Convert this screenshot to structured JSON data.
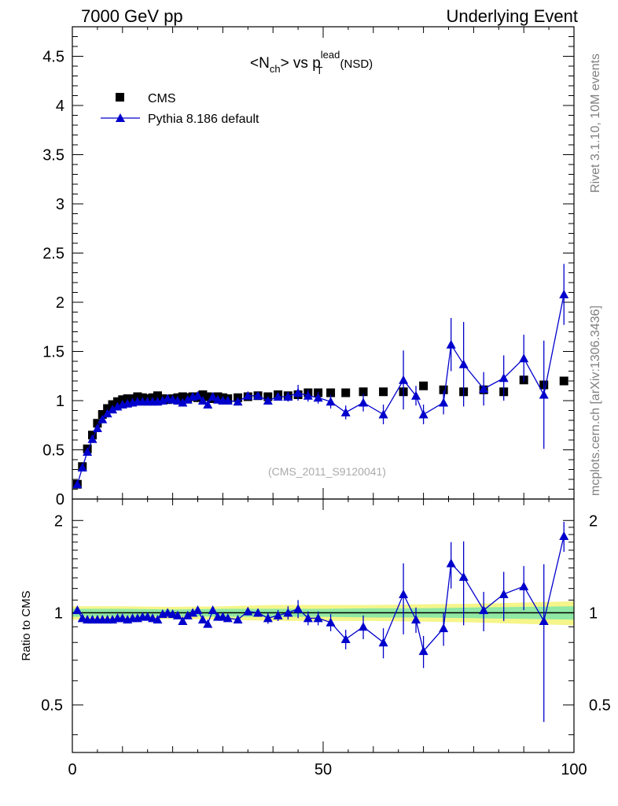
{
  "header": {
    "left": "7000 GeV pp",
    "right": "Underlying Event"
  },
  "side_text": {
    "rivet": "Rivet 3.1.10,  10M events",
    "mcplots": "mcplots.cern.ch [arXiv:1306.3436]"
  },
  "chart_data": {
    "type": "scatter",
    "title_parts": {
      "open": "<N",
      "sub1": "ch",
      "mid": "> vs p",
      "sup": "lead",
      "sub2": "T",
      "tail": " (NSD)"
    },
    "watermark": "(CMS_2011_S9120041)",
    "legend": {
      "placement": "top-left",
      "entries": [
        "CMS",
        "Pythia 8.186 default"
      ]
    },
    "xlim": [
      0,
      100
    ],
    "ylim": [
      0,
      4.8
    ],
    "x_ticks": [
      0,
      50,
      100
    ],
    "x_tick_labels": [
      "0",
      "50",
      "100"
    ],
    "y_ticks": [
      0,
      0.5,
      1,
      1.5,
      2,
      2.5,
      3,
      3.5,
      4,
      4.5
    ],
    "y_tick_labels": [
      "0",
      "0.5",
      "1",
      "1.5",
      "2",
      "2.5",
      "3",
      "3.5",
      "4",
      "4.5"
    ],
    "series": [
      {
        "name": "CMS",
        "marker": "square",
        "color": "#000000",
        "points": [
          [
            1,
            0.15
          ],
          [
            2,
            0.33
          ],
          [
            3,
            0.51
          ],
          [
            4,
            0.65
          ],
          [
            5,
            0.77
          ],
          [
            6,
            0.86
          ],
          [
            7,
            0.92
          ],
          [
            8,
            0.96
          ],
          [
            9,
            0.99
          ],
          [
            10,
            1.01
          ],
          [
            11,
            1.02
          ],
          [
            12,
            1.02
          ],
          [
            13,
            1.04
          ],
          [
            14,
            1.03
          ],
          [
            15,
            1.02
          ],
          [
            16,
            1.03
          ],
          [
            17,
            1.05
          ],
          [
            18,
            1.02
          ],
          [
            19,
            1.01
          ],
          [
            20,
            1.02
          ],
          [
            21,
            1.03
          ],
          [
            22,
            1.04
          ],
          [
            23,
            1.03
          ],
          [
            24,
            1.04
          ],
          [
            25,
            1.03
          ],
          [
            26,
            1.06
          ],
          [
            27,
            1.04
          ],
          [
            28,
            1.02
          ],
          [
            29,
            1.04
          ],
          [
            30,
            1.03
          ],
          [
            31,
            1.02
          ],
          [
            33,
            1.03
          ],
          [
            35,
            1.04
          ],
          [
            37,
            1.05
          ],
          [
            39,
            1.04
          ],
          [
            41,
            1.06
          ],
          [
            43,
            1.05
          ],
          [
            45,
            1.06
          ],
          [
            47,
            1.08
          ],
          [
            49,
            1.08
          ],
          [
            51.5,
            1.08
          ],
          [
            54.5,
            1.08
          ],
          [
            58,
            1.09
          ],
          [
            62,
            1.09
          ],
          [
            66,
            1.09
          ],
          [
            70,
            1.15
          ],
          [
            74,
            1.11
          ],
          [
            78,
            1.09
          ],
          [
            82,
            1.11
          ],
          [
            86,
            1.09
          ],
          [
            90,
            1.21
          ],
          [
            94,
            1.16
          ],
          [
            98,
            1.2
          ]
        ]
      },
      {
        "name": "Pythia 8.186 default",
        "marker": "triangle",
        "color": "#0000cc",
        "points": [
          [
            1,
            0.15,
            0.01
          ],
          [
            2,
            0.32,
            0.01
          ],
          [
            3,
            0.48,
            0.01
          ],
          [
            4,
            0.61,
            0.01
          ],
          [
            5,
            0.72,
            0.01
          ],
          [
            6,
            0.81,
            0.01
          ],
          [
            7,
            0.87,
            0.01
          ],
          [
            8,
            0.91,
            0.01
          ],
          [
            9,
            0.94,
            0.01
          ],
          [
            10,
            0.96,
            0.01
          ],
          [
            11,
            0.97,
            0.01
          ],
          [
            12,
            0.98,
            0.01
          ],
          [
            13,
            0.99,
            0.01
          ],
          [
            14,
            0.99,
            0.01
          ],
          [
            15,
            0.99,
            0.01
          ],
          [
            16,
            0.99,
            0.01
          ],
          [
            17,
            0.99,
            0.01
          ],
          [
            18,
            1.0,
            0.01
          ],
          [
            19,
            1.02,
            0.01
          ],
          [
            20,
            1.01,
            0.01
          ],
          [
            21,
            1.0,
            0.02
          ],
          [
            22,
            0.98,
            0.02
          ],
          [
            23,
            1.01,
            0.02
          ],
          [
            24,
            1.04,
            0.02
          ],
          [
            25,
            1.05,
            0.02
          ],
          [
            26,
            1.0,
            0.02
          ],
          [
            27,
            0.96,
            0.02
          ],
          [
            28,
            1.04,
            0.02
          ],
          [
            29,
            1.01,
            0.02
          ],
          [
            30,
            1.0,
            0.02
          ],
          [
            31,
            1.0,
            0.02
          ],
          [
            33,
            0.99,
            0.02
          ],
          [
            35,
            1.05,
            0.03
          ],
          [
            37,
            1.05,
            0.03
          ],
          [
            39,
            1.0,
            0.04
          ],
          [
            41,
            1.04,
            0.04
          ],
          [
            43,
            1.04,
            0.05
          ],
          [
            45,
            1.08,
            0.08
          ],
          [
            47,
            1.05,
            0.06
          ],
          [
            49,
            1.03,
            0.06
          ],
          [
            51.5,
            0.99,
            0.07
          ],
          [
            54.5,
            0.88,
            0.07
          ],
          [
            58,
            0.98,
            0.09
          ],
          [
            62,
            0.86,
            0.1
          ],
          [
            66,
            1.21,
            0.3
          ],
          [
            68.5,
            1.05,
            0.1
          ],
          [
            70,
            0.86,
            0.1
          ],
          [
            74,
            0.98,
            0.12
          ],
          [
            75.5,
            1.57,
            0.27
          ],
          [
            78,
            1.37,
            0.43
          ],
          [
            82,
            1.12,
            0.17
          ],
          [
            86,
            1.23,
            0.23
          ],
          [
            90,
            1.43,
            0.24
          ],
          [
            94,
            1.06,
            0.55
          ],
          [
            98,
            2.08,
            0.31
          ]
        ]
      }
    ]
  },
  "ratio_chart_data": {
    "type": "scatter",
    "ylabel": "Ratio to CMS",
    "ylim": [
      0.35,
      2.35
    ],
    "y_ticks": [
      0.5,
      1,
      2
    ],
    "y_tick_labels": [
      "0.5",
      "1",
      "2"
    ],
    "reference_line": 1,
    "band_green": [
      [
        0,
        0.03
      ],
      [
        10,
        0.03
      ],
      [
        20,
        0.025
      ],
      [
        30,
        0.03
      ],
      [
        40,
        0.03
      ],
      [
        50,
        0.03
      ],
      [
        60,
        0.035
      ],
      [
        70,
        0.035
      ],
      [
        80,
        0.04
      ],
      [
        90,
        0.045
      ],
      [
        100,
        0.05
      ]
    ],
    "band_yellow": [
      [
        0,
        0.05
      ],
      [
        10,
        0.05
      ],
      [
        20,
        0.045
      ],
      [
        30,
        0.05
      ],
      [
        40,
        0.06
      ],
      [
        50,
        0.06
      ],
      [
        60,
        0.06
      ],
      [
        70,
        0.065
      ],
      [
        80,
        0.07
      ],
      [
        90,
        0.08
      ],
      [
        100,
        0.09
      ]
    ],
    "series": [
      {
        "name": "Pythia 8.186 default",
        "marker": "triangle",
        "color": "#0000cc",
        "points": [
          [
            1,
            1.02,
            0.01
          ],
          [
            2,
            0.96,
            0.01
          ],
          [
            3,
            0.95,
            0.01
          ],
          [
            4,
            0.95,
            0.01
          ],
          [
            5,
            0.95,
            0.01
          ],
          [
            6,
            0.95,
            0.01
          ],
          [
            7,
            0.95,
            0.01
          ],
          [
            8,
            0.95,
            0.01
          ],
          [
            9,
            0.96,
            0.01
          ],
          [
            10,
            0.96,
            0.01
          ],
          [
            11,
            0.95,
            0.01
          ],
          [
            12,
            0.96,
            0.01
          ],
          [
            13,
            0.96,
            0.01
          ],
          [
            14,
            0.97,
            0.01
          ],
          [
            15,
            0.97,
            0.01
          ],
          [
            16,
            0.96,
            0.01
          ],
          [
            17,
            0.95,
            0.01
          ],
          [
            18,
            0.99,
            0.01
          ],
          [
            19,
            1.0,
            0.01
          ],
          [
            20,
            0.99,
            0.01
          ],
          [
            21,
            0.98,
            0.02
          ],
          [
            22,
            0.94,
            0.02
          ],
          [
            23,
            0.98,
            0.02
          ],
          [
            24,
            1.0,
            0.02
          ],
          [
            25,
            1.02,
            0.02
          ],
          [
            26,
            0.95,
            0.02
          ],
          [
            27,
            0.92,
            0.02
          ],
          [
            28,
            1.02,
            0.02
          ],
          [
            29,
            0.97,
            0.02
          ],
          [
            30,
            0.97,
            0.02
          ],
          [
            31,
            0.96,
            0.02
          ],
          [
            33,
            0.95,
            0.02
          ],
          [
            35,
            1.01,
            0.03
          ],
          [
            37,
            1.0,
            0.03
          ],
          [
            39,
            0.96,
            0.04
          ],
          [
            41,
            0.98,
            0.04
          ],
          [
            43,
            1.0,
            0.05
          ],
          [
            45,
            1.03,
            0.07
          ],
          [
            47,
            0.96,
            0.05
          ],
          [
            49,
            0.96,
            0.05
          ],
          [
            51.5,
            0.93,
            0.06
          ],
          [
            54.5,
            0.82,
            0.06
          ],
          [
            58,
            0.9,
            0.08
          ],
          [
            62,
            0.8,
            0.09
          ],
          [
            66,
            1.15,
            0.3
          ],
          [
            68.5,
            0.95,
            0.09
          ],
          [
            70,
            0.75,
            0.09
          ],
          [
            74,
            0.89,
            0.11
          ],
          [
            75.5,
            1.45,
            0.25
          ],
          [
            78,
            1.31,
            0.4
          ],
          [
            82,
            1.02,
            0.15
          ],
          [
            86,
            1.15,
            0.21
          ],
          [
            90,
            1.22,
            0.2
          ],
          [
            94,
            0.94,
            0.5
          ],
          [
            98,
            1.78,
            0.2
          ]
        ]
      }
    ]
  }
}
